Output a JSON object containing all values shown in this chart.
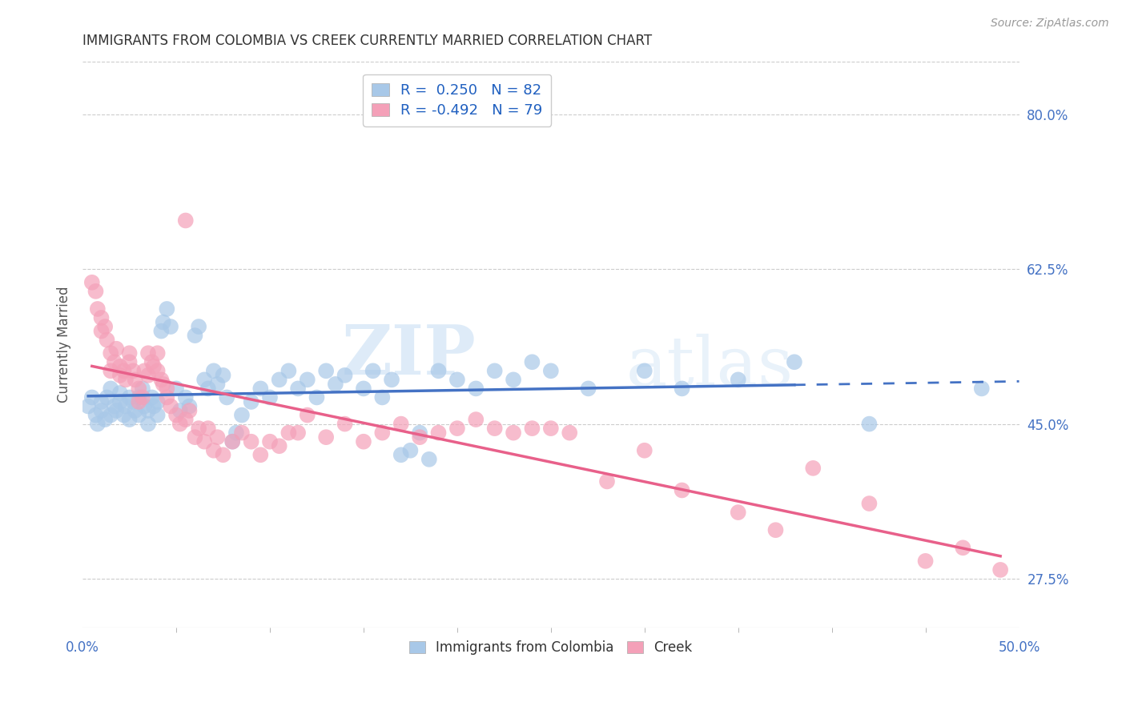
{
  "title": "IMMIGRANTS FROM COLOMBIA VS CREEK CURRENTLY MARRIED CORRELATION CHART",
  "source": "Source: ZipAtlas.com",
  "ylabel": "Currently Married",
  "ytick_vals": [
    0.275,
    0.45,
    0.625,
    0.8
  ],
  "ytick_labels": [
    "27.5%",
    "45.0%",
    "62.5%",
    "80.0%"
  ],
  "xlim": [
    0.0,
    0.5
  ],
  "ylim": [
    0.22,
    0.86
  ],
  "colombia_color": "#a8c8e8",
  "creek_color": "#f4a0b8",
  "colombia_R": 0.25,
  "colombia_N": 82,
  "creek_R": -0.492,
  "creek_N": 79,
  "colombia_line_color": "#4472c4",
  "creek_line_color": "#e8608a",
  "legend_color": "#2060c0",
  "watermark_zip": "ZIP",
  "watermark_atlas": "atlas",
  "xtick_left": "0.0%",
  "xtick_right": "50.0%",
  "colombia_scatter": [
    [
      0.003,
      0.47
    ],
    [
      0.005,
      0.48
    ],
    [
      0.007,
      0.46
    ],
    [
      0.008,
      0.45
    ],
    [
      0.01,
      0.475
    ],
    [
      0.01,
      0.465
    ],
    [
      0.012,
      0.455
    ],
    [
      0.013,
      0.48
    ],
    [
      0.015,
      0.49
    ],
    [
      0.015,
      0.46
    ],
    [
      0.017,
      0.47
    ],
    [
      0.018,
      0.465
    ],
    [
      0.02,
      0.475
    ],
    [
      0.02,
      0.485
    ],
    [
      0.022,
      0.46
    ],
    [
      0.023,
      0.47
    ],
    [
      0.025,
      0.48
    ],
    [
      0.025,
      0.455
    ],
    [
      0.027,
      0.475
    ],
    [
      0.028,
      0.465
    ],
    [
      0.03,
      0.48
    ],
    [
      0.03,
      0.46
    ],
    [
      0.032,
      0.49
    ],
    [
      0.033,
      0.47
    ],
    [
      0.035,
      0.465
    ],
    [
      0.035,
      0.45
    ],
    [
      0.037,
      0.48
    ],
    [
      0.038,
      0.47
    ],
    [
      0.04,
      0.475
    ],
    [
      0.04,
      0.46
    ],
    [
      0.042,
      0.555
    ],
    [
      0.043,
      0.565
    ],
    [
      0.045,
      0.58
    ],
    [
      0.047,
      0.56
    ],
    [
      0.05,
      0.49
    ],
    [
      0.052,
      0.465
    ],
    [
      0.055,
      0.48
    ],
    [
      0.057,
      0.47
    ],
    [
      0.06,
      0.55
    ],
    [
      0.062,
      0.56
    ],
    [
      0.065,
      0.5
    ],
    [
      0.067,
      0.49
    ],
    [
      0.07,
      0.51
    ],
    [
      0.072,
      0.495
    ],
    [
      0.075,
      0.505
    ],
    [
      0.077,
      0.48
    ],
    [
      0.08,
      0.43
    ],
    [
      0.082,
      0.44
    ],
    [
      0.085,
      0.46
    ],
    [
      0.09,
      0.475
    ],
    [
      0.095,
      0.49
    ],
    [
      0.1,
      0.48
    ],
    [
      0.105,
      0.5
    ],
    [
      0.11,
      0.51
    ],
    [
      0.115,
      0.49
    ],
    [
      0.12,
      0.5
    ],
    [
      0.125,
      0.48
    ],
    [
      0.13,
      0.51
    ],
    [
      0.135,
      0.495
    ],
    [
      0.14,
      0.505
    ],
    [
      0.15,
      0.49
    ],
    [
      0.155,
      0.51
    ],
    [
      0.16,
      0.48
    ],
    [
      0.165,
      0.5
    ],
    [
      0.17,
      0.415
    ],
    [
      0.175,
      0.42
    ],
    [
      0.18,
      0.44
    ],
    [
      0.185,
      0.41
    ],
    [
      0.19,
      0.51
    ],
    [
      0.2,
      0.5
    ],
    [
      0.21,
      0.49
    ],
    [
      0.22,
      0.51
    ],
    [
      0.23,
      0.5
    ],
    [
      0.24,
      0.52
    ],
    [
      0.25,
      0.51
    ],
    [
      0.27,
      0.49
    ],
    [
      0.3,
      0.51
    ],
    [
      0.32,
      0.49
    ],
    [
      0.35,
      0.5
    ],
    [
      0.38,
      0.52
    ],
    [
      0.42,
      0.45
    ],
    [
      0.48,
      0.49
    ]
  ],
  "creek_scatter": [
    [
      0.005,
      0.61
    ],
    [
      0.007,
      0.6
    ],
    [
      0.008,
      0.58
    ],
    [
      0.01,
      0.57
    ],
    [
      0.01,
      0.555
    ],
    [
      0.012,
      0.56
    ],
    [
      0.013,
      0.545
    ],
    [
      0.015,
      0.53
    ],
    [
      0.015,
      0.51
    ],
    [
      0.017,
      0.52
    ],
    [
      0.018,
      0.535
    ],
    [
      0.02,
      0.515
    ],
    [
      0.02,
      0.505
    ],
    [
      0.022,
      0.51
    ],
    [
      0.023,
      0.5
    ],
    [
      0.025,
      0.53
    ],
    [
      0.025,
      0.52
    ],
    [
      0.027,
      0.51
    ],
    [
      0.028,
      0.5
    ],
    [
      0.03,
      0.475
    ],
    [
      0.03,
      0.49
    ],
    [
      0.032,
      0.48
    ],
    [
      0.033,
      0.51
    ],
    [
      0.035,
      0.53
    ],
    [
      0.035,
      0.505
    ],
    [
      0.037,
      0.52
    ],
    [
      0.038,
      0.515
    ],
    [
      0.04,
      0.53
    ],
    [
      0.04,
      0.51
    ],
    [
      0.042,
      0.5
    ],
    [
      0.043,
      0.495
    ],
    [
      0.045,
      0.48
    ],
    [
      0.045,
      0.49
    ],
    [
      0.047,
      0.47
    ],
    [
      0.05,
      0.46
    ],
    [
      0.052,
      0.45
    ],
    [
      0.055,
      0.455
    ],
    [
      0.055,
      0.68
    ],
    [
      0.057,
      0.465
    ],
    [
      0.06,
      0.435
    ],
    [
      0.062,
      0.445
    ],
    [
      0.065,
      0.43
    ],
    [
      0.067,
      0.445
    ],
    [
      0.07,
      0.42
    ],
    [
      0.072,
      0.435
    ],
    [
      0.075,
      0.415
    ],
    [
      0.08,
      0.43
    ],
    [
      0.085,
      0.44
    ],
    [
      0.09,
      0.43
    ],
    [
      0.095,
      0.415
    ],
    [
      0.1,
      0.43
    ],
    [
      0.105,
      0.425
    ],
    [
      0.11,
      0.44
    ],
    [
      0.115,
      0.44
    ],
    [
      0.12,
      0.46
    ],
    [
      0.13,
      0.435
    ],
    [
      0.14,
      0.45
    ],
    [
      0.15,
      0.43
    ],
    [
      0.16,
      0.44
    ],
    [
      0.17,
      0.45
    ],
    [
      0.18,
      0.435
    ],
    [
      0.19,
      0.44
    ],
    [
      0.2,
      0.445
    ],
    [
      0.21,
      0.455
    ],
    [
      0.22,
      0.445
    ],
    [
      0.23,
      0.44
    ],
    [
      0.24,
      0.445
    ],
    [
      0.25,
      0.445
    ],
    [
      0.26,
      0.44
    ],
    [
      0.28,
      0.385
    ],
    [
      0.3,
      0.42
    ],
    [
      0.32,
      0.375
    ],
    [
      0.35,
      0.35
    ],
    [
      0.37,
      0.33
    ],
    [
      0.39,
      0.4
    ],
    [
      0.42,
      0.36
    ],
    [
      0.45,
      0.295
    ],
    [
      0.47,
      0.31
    ],
    [
      0.49,
      0.285
    ]
  ]
}
